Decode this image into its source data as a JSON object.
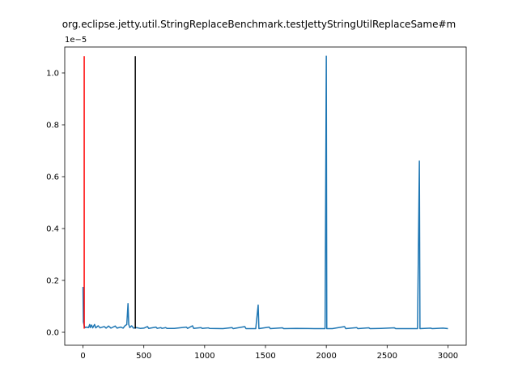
{
  "chart_data": {
    "type": "line",
    "title": "org.eclipse.jetty.util.StringReplaceBenchmark.testJettyStringUtilReplaceSame#m",
    "xlabel": "",
    "ylabel": "",
    "offset_text": "1e−5",
    "xlim": [
      -150,
      3150
    ],
    "ylim": [
      -0.05,
      1.1
    ],
    "grid": false,
    "x_ticks": [
      0,
      500,
      1000,
      1500,
      2000,
      2500,
      3000
    ],
    "x_tick_labels": [
      "0",
      "500",
      "1000",
      "1500",
      "2000",
      "2500",
      "3000"
    ],
    "y_ticks": [
      0.0,
      0.2,
      0.4,
      0.6,
      0.8,
      1.0
    ],
    "y_tick_labels": [
      "0.0",
      "0.2",
      "0.4",
      "0.6",
      "0.8",
      "1.0"
    ],
    "series": [
      {
        "color": "#1f77b4",
        "points": [
          [
            0,
            0.175
          ],
          [
            3,
            0.04
          ],
          [
            8,
            0.03
          ],
          [
            12,
            0.022
          ],
          [
            20,
            0.018
          ],
          [
            30,
            0.02
          ],
          [
            45,
            0.018
          ],
          [
            55,
            0.03
          ],
          [
            60,
            0.018
          ],
          [
            70,
            0.028
          ],
          [
            80,
            0.017
          ],
          [
            95,
            0.03
          ],
          [
            105,
            0.017
          ],
          [
            125,
            0.025
          ],
          [
            140,
            0.017
          ],
          [
            175,
            0.022
          ],
          [
            190,
            0.016
          ],
          [
            210,
            0.024
          ],
          [
            230,
            0.016
          ],
          [
            265,
            0.024
          ],
          [
            280,
            0.016
          ],
          [
            310,
            0.02
          ],
          [
            330,
            0.016
          ],
          [
            345,
            0.025
          ],
          [
            360,
            0.03
          ],
          [
            370,
            0.11
          ],
          [
            376,
            0.03
          ],
          [
            385,
            0.018
          ],
          [
            400,
            0.025
          ],
          [
            415,
            0.016
          ],
          [
            440,
            0.018
          ],
          [
            470,
            0.015
          ],
          [
            500,
            0.016
          ],
          [
            530,
            0.022
          ],
          [
            540,
            0.015
          ],
          [
            600,
            0.02
          ],
          [
            610,
            0.015
          ],
          [
            640,
            0.018
          ],
          [
            650,
            0.015
          ],
          [
            680,
            0.018
          ],
          [
            690,
            0.015
          ],
          [
            750,
            0.015
          ],
          [
            850,
            0.02
          ],
          [
            860,
            0.015
          ],
          [
            900,
            0.025
          ],
          [
            910,
            0.015
          ],
          [
            970,
            0.018
          ],
          [
            980,
            0.015
          ],
          [
            1030,
            0.017
          ],
          [
            1040,
            0.015
          ],
          [
            1150,
            0.014
          ],
          [
            1225,
            0.018
          ],
          [
            1235,
            0.014
          ],
          [
            1330,
            0.022
          ],
          [
            1340,
            0.014
          ],
          [
            1420,
            0.014
          ],
          [
            1440,
            0.105
          ],
          [
            1446,
            0.014
          ],
          [
            1530,
            0.02
          ],
          [
            1540,
            0.014
          ],
          [
            1640,
            0.017
          ],
          [
            1650,
            0.014
          ],
          [
            1750,
            0.015
          ],
          [
            1900,
            0.014
          ],
          [
            1990,
            0.014
          ],
          [
            2000,
            1.065
          ],
          [
            2004,
            0.014
          ],
          [
            2050,
            0.014
          ],
          [
            2150,
            0.022
          ],
          [
            2160,
            0.014
          ],
          [
            2250,
            0.018
          ],
          [
            2260,
            0.014
          ],
          [
            2350,
            0.017
          ],
          [
            2360,
            0.014
          ],
          [
            2450,
            0.015
          ],
          [
            2560,
            0.017
          ],
          [
            2570,
            0.014
          ],
          [
            2750,
            0.014
          ],
          [
            2765,
            0.66
          ],
          [
            2770,
            0.014
          ],
          [
            2860,
            0.016
          ],
          [
            2870,
            0.014
          ],
          [
            2960,
            0.016
          ],
          [
            3000,
            0.014
          ]
        ]
      }
    ],
    "vertical_lines": [
      {
        "x": 10,
        "y_min": 0.014,
        "y_max": 1.065,
        "color": "#ff0000"
      },
      {
        "x": 430,
        "y_min": 0.014,
        "y_max": 1.065,
        "color": "#000000"
      }
    ]
  }
}
